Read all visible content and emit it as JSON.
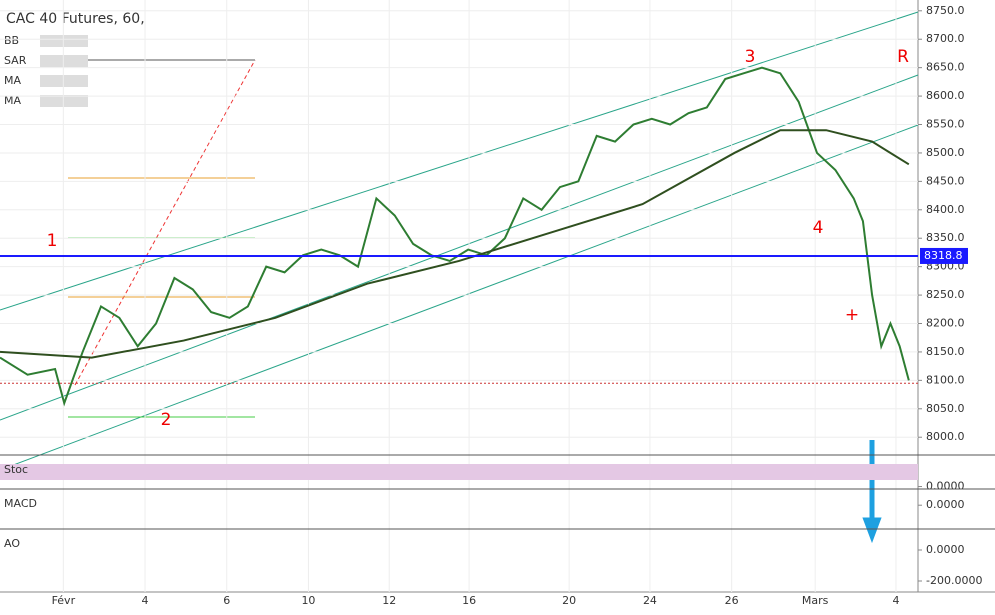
{
  "chart_data": {
    "type": "line",
    "title": "CAC 40 Futures, 60,",
    "indicators": [
      "BB",
      "SAR",
      "MA",
      "MA"
    ],
    "xlim": [
      0,
      100
    ],
    "xticks": [
      {
        "value": 6.9,
        "label": "Févr"
      },
      {
        "value": 15.8,
        "label": "4"
      },
      {
        "value": 24.7,
        "label": "6"
      },
      {
        "value": 33.6,
        "label": "10"
      },
      {
        "value": 42.4,
        "label": "12"
      },
      {
        "value": 51.1,
        "label": "16"
      },
      {
        "value": 62.0,
        "label": "20"
      },
      {
        "value": 70.8,
        "label": "24"
      },
      {
        "value": 79.7,
        "label": "26"
      },
      {
        "value": 88.8,
        "label": "Mars"
      },
      {
        "value": 97.6,
        "label": "4"
      }
    ],
    "ylim": [
      7974,
      8769
    ],
    "yticks": [
      {
        "value": 8000,
        "label": "8000.0"
      },
      {
        "value": 8050,
        "label": "8050.0"
      },
      {
        "value": 8100,
        "label": "8100.0"
      },
      {
        "value": 8150,
        "label": "8150.0"
      },
      {
        "value": 8200,
        "label": "8200.0"
      },
      {
        "value": 8250,
        "label": "8250.0"
      },
      {
        "value": 8300,
        "label": "8300.0"
      },
      {
        "value": 8350,
        "label": "8350.0"
      },
      {
        "value": 8400,
        "label": "8400.0"
      },
      {
        "value": 8450,
        "label": "8450.0"
      },
      {
        "value": 8500,
        "label": "8500.0"
      },
      {
        "value": 8550,
        "label": "8550.0"
      },
      {
        "value": 8600,
        "label": "8600.0"
      },
      {
        "value": 8650,
        "label": "8650.0"
      },
      {
        "value": 8700,
        "label": "8700.0"
      },
      {
        "value": 8750,
        "label": "8750.0"
      }
    ],
    "series": [
      {
        "color": "#2e7d32",
        "x": [
          0,
          3,
          6,
          7,
          9,
          11,
          13,
          15,
          17,
          19,
          21,
          23,
          25,
          27,
          29,
          31,
          33,
          35,
          37,
          39,
          41,
          43,
          45,
          47,
          49,
          51,
          53,
          55,
          57,
          59,
          61,
          63,
          65,
          67,
          69,
          71,
          73,
          75,
          77,
          79,
          81,
          83,
          85,
          87,
          89,
          91,
          93,
          94,
          95,
          96,
          97,
          98,
          99
        ],
        "values": [
          8140,
          8110,
          8120,
          8060,
          8150,
          8230,
          8210,
          8160,
          8200,
          8280,
          8260,
          8220,
          8210,
          8230,
          8300,
          8290,
          8320,
          8330,
          8320,
          8300,
          8420,
          8390,
          8340,
          8320,
          8310,
          8330,
          8320,
          8350,
          8420,
          8400,
          8440,
          8450,
          8530,
          8520,
          8550,
          8560,
          8550,
          8570,
          8580,
          8630,
          8640,
          8650,
          8640,
          8590,
          8500,
          8470,
          8420,
          8380,
          8250,
          8160,
          8200,
          8160,
          8100
        ]
      },
      {
        "color": "#2f4f1f",
        "x": [
          0,
          10,
          20,
          30,
          40,
          50,
          60,
          70,
          80,
          85,
          90,
          95,
          99
        ],
        "values": [
          8150,
          8140,
          8170,
          8210,
          8270,
          8310,
          8360,
          8410,
          8500,
          8540,
          8540,
          8520,
          8480
        ]
      }
    ],
    "current_price": 8318.8,
    "reference_line": 8095,
    "annotations": [
      "1",
      "2",
      "3",
      "4",
      "R",
      "+"
    ],
    "indicator_panels": [
      {
        "label": "Stoc",
        "ylim": [
          -5,
          105
        ],
        "yticks": [
          {
            "value": 0,
            "label": "0.0000"
          }
        ]
      },
      {
        "label": "MACD",
        "ylim": [
          -60,
          40
        ],
        "yticks": [
          {
            "value": 0,
            "label": "0.0000"
          }
        ]
      },
      {
        "label": "AO",
        "ylim": [
          -258,
          129
        ],
        "yticks": [
          {
            "value": 0,
            "label": "0.0000"
          },
          {
            "value": -200,
            "label": "-200.0000"
          }
        ]
      }
    ]
  }
}
